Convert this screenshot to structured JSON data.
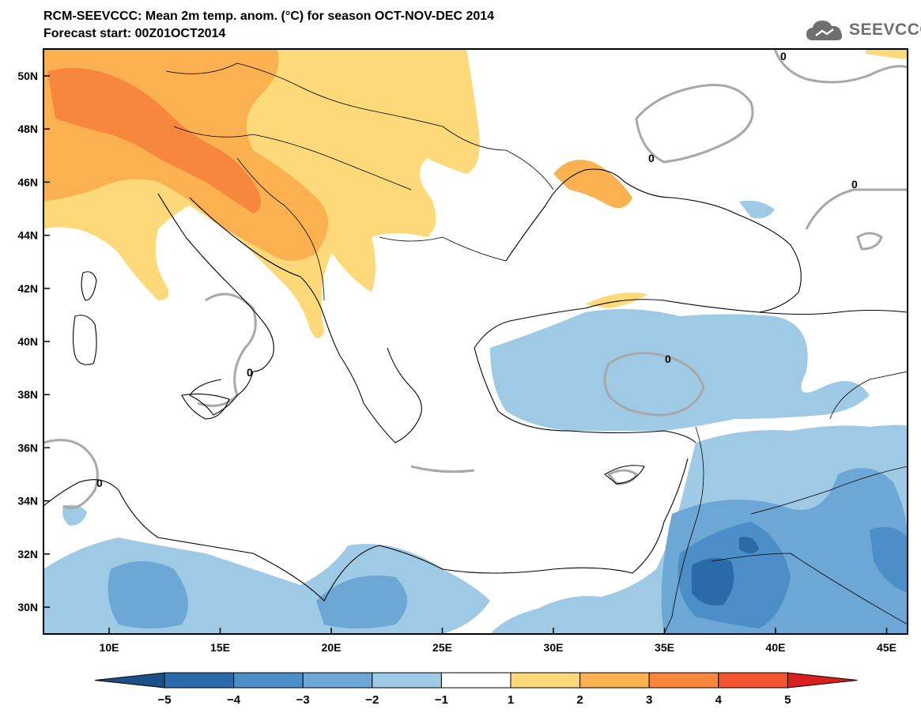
{
  "header": {
    "title_line1": "RCM-SEEVCCC: Mean 2m temp. anom. (°C) for season OCT-NOV-DEC 2014",
    "title_line2": "Forecast start: 00Z01OCT2014"
  },
  "logo": {
    "text": "SEEVCCC",
    "icon": "cloud-logo-icon"
  },
  "map": {
    "lat_ticks": [
      "50N",
      "48N",
      "46N",
      "44N",
      "42N",
      "40N",
      "38N",
      "36N",
      "34N",
      "32N",
      "30N"
    ],
    "lon_ticks": [
      "10E",
      "15E",
      "20E",
      "25E",
      "30E",
      "35E",
      "40E",
      "45E"
    ],
    "contour_label": "0"
  },
  "colorbar": {
    "labels": [
      "−5",
      "−4",
      "−3",
      "−2",
      "−1",
      "1",
      "2",
      "3",
      "4",
      "5"
    ],
    "colors": [
      "#1b4f86",
      "#2a6aa8",
      "#4c8fc8",
      "#6ca7d6",
      "#9ecae6",
      "#ffffff",
      "#fdd97a",
      "#fbb150",
      "#f7873c",
      "#f25530",
      "#d9201e"
    ]
  },
  "palette": {
    "warm1": "#fdd97a",
    "warm2": "#fbb150",
    "warm3": "#f7873c",
    "cool1": "#9ecae6",
    "cool2": "#6ca7d6",
    "cool3": "#4c8fc8",
    "cool4": "#2a6aa8",
    "cool5": "#1b4f86",
    "contour": "#a8a8a8",
    "border": "#000000"
  }
}
